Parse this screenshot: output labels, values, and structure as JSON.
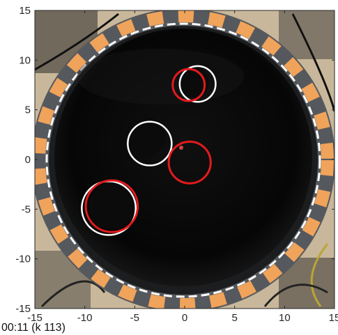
{
  "chart_data": {
    "type": "scatter",
    "title": "",
    "xlabel": "",
    "ylabel": "",
    "xlim": [
      -15,
      15
    ],
    "ylim": [
      -15,
      15
    ],
    "grid": false,
    "x_ticks": [
      "-15",
      "-10",
      "-5",
      "0",
      "5",
      "10",
      "15"
    ],
    "y_ticks": [
      "15",
      "10",
      "5",
      "0",
      "-5",
      "-10",
      "-15"
    ],
    "background": "photograph of a circular black water tank with floating discs, ringed by an orange and grey gauge-marked rim",
    "circle_colors": {
      "white": "#ffffff",
      "red": "#e41a1c"
    },
    "white_circles": [
      {
        "x": 1.3,
        "y": 7.6,
        "r": 1.8
      },
      {
        "x": -3.5,
        "y": 1.6,
        "r": 2.2
      },
      {
        "x": -7.6,
        "y": -4.9,
        "r": 2.7
      }
    ],
    "red_circles": [
      {
        "x": 0.4,
        "y": 7.5,
        "r": 1.6
      },
      {
        "x": 0.5,
        "y": -0.3,
        "r": 2.1
      },
      {
        "x": -7.3,
        "y": -4.7,
        "r": 2.6
      }
    ]
  },
  "caption": "00:11 (k 113)"
}
